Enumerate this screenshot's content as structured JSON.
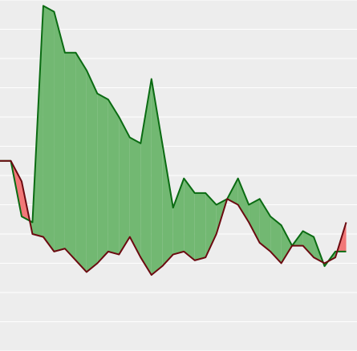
{
  "chart_data": {
    "type": "area",
    "chart_style": "difference fill between two lines",
    "x": [
      0,
      1,
      2,
      3,
      4,
      5,
      6,
      7,
      8,
      9,
      10,
      11,
      12,
      13,
      14,
      15,
      16,
      17,
      18,
      19,
      20,
      21,
      22,
      23,
      24,
      25,
      26,
      27,
      28,
      29,
      30,
      31,
      32
    ],
    "series": [
      {
        "values": [
          8.5,
          8.5,
          6.6,
          6.4,
          13.8,
          13.6,
          12.2,
          12.2,
          11.6,
          10.8,
          10.6,
          10.0,
          9.3,
          9.1,
          11.3,
          9.1,
          6.9,
          7.9,
          7.4,
          7.4,
          7.0,
          7.2,
          7.9,
          7.0,
          7.2,
          6.6,
          6.3,
          5.6,
          6.1,
          5.9,
          4.9,
          5.4,
          5.4
        ],
        "color": "#0a6b12"
      },
      {
        "values": [
          8.5,
          8.5,
          7.8,
          6.0,
          5.9,
          5.4,
          5.5,
          5.1,
          4.7,
          5.0,
          5.4,
          5.3,
          5.9,
          5.2,
          4.6,
          4.9,
          5.3,
          5.4,
          5.1,
          5.2,
          6.0,
          7.2,
          7.0,
          6.4,
          5.7,
          5.4,
          5.0,
          5.6,
          5.6,
          5.2,
          5.0,
          5.2,
          6.4
        ],
        "color": "#6b0a10"
      }
    ],
    "fill_above_color": "#72b872",
    "fill_below_color": "#f27878",
    "xlim": [
      0,
      33
    ],
    "ylim": [
      2,
      14
    ],
    "grid": true,
    "background": "#ededed",
    "grid_color": "#ffffff"
  }
}
